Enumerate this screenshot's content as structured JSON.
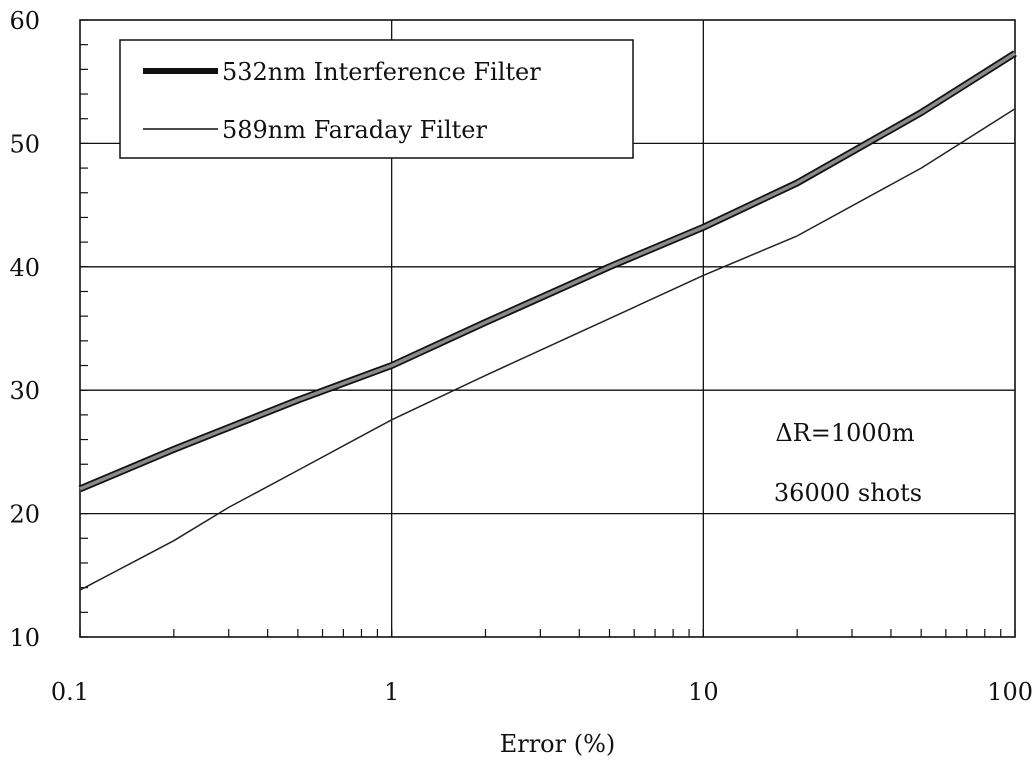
{
  "chart_data": {
    "type": "line",
    "xlabel": "Error (%)",
    "ylabel": "",
    "xscale": "log",
    "xlim": [
      0.1,
      100
    ],
    "ylim": [
      10,
      60
    ],
    "grid": true,
    "legend_position": "top-left",
    "x_tick_labels": [
      "0.1",
      "1",
      "10",
      "100"
    ],
    "y_tick_labels": [
      "10",
      "20",
      "30",
      "40",
      "50",
      "60"
    ],
    "x_ticks": [
      0.1,
      1,
      10,
      100
    ],
    "y_ticks": [
      10,
      20,
      30,
      40,
      50,
      60
    ],
    "series": [
      {
        "name": "532nm Interference Filter",
        "style": "thick",
        "color": "#555555",
        "x": [
          0.1,
          0.2,
          0.5,
          1,
          2,
          5,
          10,
          20,
          50,
          100
        ],
        "y": [
          22.0,
          25.2,
          29.2,
          32.0,
          35.5,
          40.0,
          43.2,
          46.8,
          52.5,
          57.3
        ]
      },
      {
        "name": "589nm Faraday Filter",
        "style": "thin",
        "color": "#222222",
        "x": [
          0.1,
          0.2,
          0.3,
          0.5,
          1,
          2,
          5,
          10,
          20,
          50,
          100
        ],
        "y": [
          13.8,
          17.8,
          20.5,
          23.5,
          27.6,
          31.2,
          35.8,
          39.3,
          42.5,
          48.0,
          52.8
        ]
      }
    ],
    "annotations": [
      "ΔR=1000m",
      "36000 shots"
    ]
  }
}
